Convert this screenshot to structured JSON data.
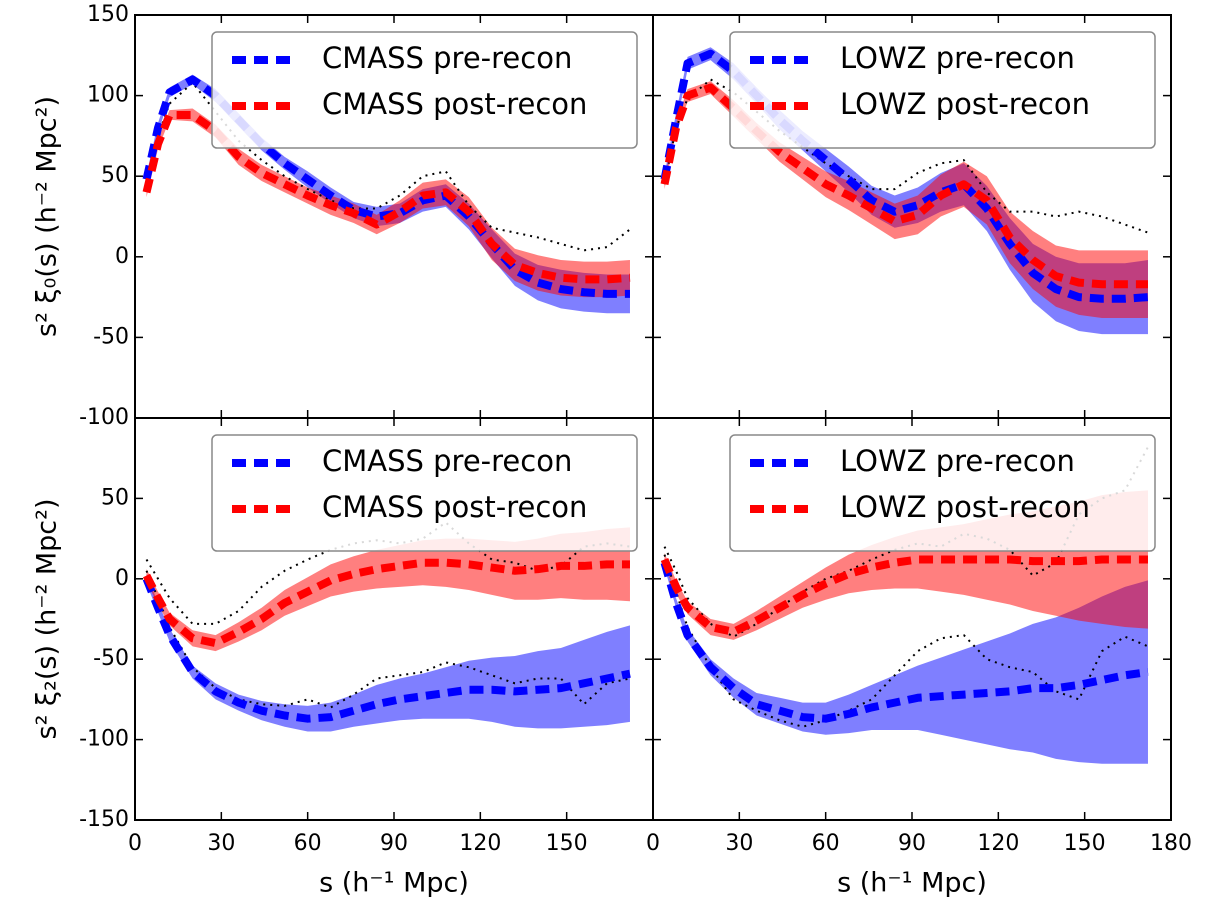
{
  "chart_data": [
    {
      "type": "line",
      "ylabel": "s² ξ₀(s) (h⁻² Mpc²)",
      "legend": "upper right",
      "x": [
        4,
        8,
        12,
        20,
        28,
        36,
        44,
        52,
        60,
        68,
        76,
        84,
        92,
        100,
        108,
        116,
        124,
        132,
        140,
        148,
        156,
        164,
        172
      ],
      "xlim": [
        0,
        180
      ],
      "ylim": [
        -100,
        150
      ],
      "yticks": [
        -100,
        -50,
        0,
        50,
        100,
        150
      ],
      "series": [
        {
          "name": "CMASS pre-recon",
          "color": "#0000ff",
          "style": "dashed",
          "values": [
            48,
            80,
            102,
            110,
            100,
            85,
            70,
            58,
            48,
            38,
            29,
            25,
            27,
            35,
            38,
            25,
            8,
            -8,
            -16,
            -20,
            -22,
            -23,
            -23
          ],
          "upper": [
            51,
            83,
            105,
            113,
            104,
            89,
            74,
            62,
            53,
            43,
            34,
            31,
            33,
            42,
            45,
            33,
            17,
            2,
            -5,
            -8,
            -10,
            -11,
            -11
          ],
          "lower": [
            45,
            77,
            99,
            107,
            96,
            81,
            66,
            54,
            43,
            33,
            24,
            19,
            21,
            28,
            31,
            17,
            -1,
            -18,
            -27,
            -32,
            -34,
            -35,
            -35
          ]
        },
        {
          "name": "CMASS post-recon",
          "color": "#ff0000",
          "style": "dashed",
          "values": [
            40,
            70,
            88,
            88,
            78,
            62,
            52,
            45,
            38,
            32,
            27,
            20,
            28,
            38,
            40,
            28,
            8,
            -5,
            -10,
            -13,
            -14,
            -14,
            -13
          ],
          "upper": [
            43,
            73,
            91,
            92,
            82,
            67,
            57,
            50,
            43,
            38,
            33,
            26,
            35,
            46,
            48,
            37,
            18,
            5,
            1,
            -2,
            -3,
            -3,
            -2
          ],
          "lower": [
            37,
            67,
            85,
            84,
            74,
            57,
            47,
            40,
            33,
            26,
            21,
            14,
            21,
            30,
            32,
            19,
            -2,
            -15,
            -21,
            -24,
            -25,
            -25,
            -24
          ]
        },
        {
          "color": "#000000",
          "style": "dotted",
          "values": [
            45,
            75,
            95,
            108,
            90,
            72,
            60,
            50,
            42,
            35,
            30,
            30,
            38,
            50,
            53,
            32,
            18,
            15,
            12,
            8,
            4,
            6,
            17
          ]
        }
      ]
    },
    {
      "type": "line",
      "legend": "upper right",
      "x": [
        4,
        8,
        12,
        20,
        28,
        36,
        44,
        52,
        60,
        68,
        76,
        84,
        92,
        100,
        108,
        116,
        124,
        132,
        140,
        148,
        156,
        164,
        172
      ],
      "xlim": [
        0,
        180
      ],
      "ylim": [
        -100,
        150
      ],
      "series": [
        {
          "name": "LOWZ pre-recon",
          "color": "#0000ff",
          "style": "dashed",
          "values": [
            48,
            85,
            120,
            126,
            115,
            100,
            85,
            72,
            60,
            48,
            35,
            28,
            32,
            40,
            45,
            30,
            8,
            -10,
            -20,
            -25,
            -26,
            -26,
            -25
          ],
          "upper": [
            51,
            89,
            124,
            130,
            120,
            105,
            91,
            78,
            67,
            56,
            44,
            38,
            43,
            52,
            58,
            44,
            24,
            8,
            0,
            -4,
            -4,
            -4,
            -2
          ],
          "lower": [
            45,
            81,
            116,
            122,
            110,
            95,
            79,
            66,
            53,
            40,
            26,
            18,
            21,
            28,
            32,
            16,
            -8,
            -28,
            -40,
            -46,
            -48,
            -48,
            -48
          ]
        },
        {
          "name": "LOWZ post-recon",
          "color": "#ff0000",
          "style": "dashed",
          "values": [
            45,
            80,
            100,
            105,
            92,
            78,
            65,
            55,
            45,
            38,
            30,
            22,
            26,
            38,
            45,
            35,
            12,
            -2,
            -12,
            -16,
            -17,
            -17,
            -17
          ],
          "upper": [
            48,
            83,
            104,
            109,
            97,
            83,
            71,
            62,
            53,
            47,
            40,
            33,
            38,
            51,
            59,
            50,
            28,
            16,
            7,
            4,
            4,
            4,
            4
          ],
          "lower": [
            42,
            77,
            96,
            101,
            87,
            73,
            59,
            48,
            37,
            29,
            20,
            11,
            14,
            25,
            31,
            20,
            -4,
            -20,
            -31,
            -36,
            -38,
            -38,
            -38
          ]
        },
        {
          "color": "#000000",
          "style": "dotted",
          "values": [
            45,
            80,
            98,
            110,
            102,
            90,
            78,
            68,
            58,
            50,
            42,
            42,
            52,
            58,
            60,
            40,
            28,
            28,
            25,
            28,
            25,
            20,
            15
          ]
        }
      ]
    },
    {
      "type": "line",
      "ylabel": "s² ξ₂(s) (h⁻² Mpc²)",
      "xlabel": "s (h⁻¹ Mpc)",
      "legend": "upper right",
      "x": [
        4,
        8,
        12,
        20,
        28,
        36,
        44,
        52,
        60,
        68,
        76,
        84,
        92,
        100,
        108,
        116,
        124,
        132,
        140,
        148,
        156,
        164,
        172
      ],
      "xlim": [
        0,
        180
      ],
      "ylim": [
        -150,
        100
      ],
      "xticks": [
        0,
        30,
        60,
        90,
        120,
        150
      ],
      "yticks": [
        -150,
        -100,
        -50,
        0,
        50
      ],
      "series": [
        {
          "name": "CMASS pre-recon",
          "color": "#0000ff",
          "style": "dashed",
          "values": [
            0,
            -18,
            -35,
            -58,
            -70,
            -77,
            -82,
            -85,
            -87,
            -86,
            -82,
            -78,
            -75,
            -73,
            -71,
            -69,
            -69,
            -70,
            -69,
            -68,
            -65,
            -62,
            -59
          ],
          "upper": [
            3,
            -15,
            -31,
            -54,
            -65,
            -72,
            -76,
            -78,
            -79,
            -77,
            -72,
            -66,
            -62,
            -59,
            -55,
            -51,
            -49,
            -48,
            -45,
            -43,
            -38,
            -33,
            -29
          ],
          "lower": [
            -3,
            -21,
            -39,
            -62,
            -75,
            -82,
            -88,
            -92,
            -95,
            -95,
            -92,
            -90,
            -88,
            -87,
            -87,
            -87,
            -89,
            -92,
            -93,
            -93,
            -92,
            -91,
            -89
          ]
        },
        {
          "name": "CMASS post-recon",
          "color": "#ff0000",
          "style": "dashed",
          "values": [
            2,
            -12,
            -25,
            -37,
            -40,
            -33,
            -25,
            -15,
            -8,
            -1,
            3,
            6,
            8,
            10,
            10,
            9,
            7,
            5,
            6,
            8,
            8,
            9,
            9
          ],
          "upper": [
            6,
            -8,
            -21,
            -32,
            -35,
            -27,
            -18,
            -7,
            1,
            9,
            14,
            18,
            21,
            24,
            25,
            25,
            24,
            23,
            25,
            28,
            29,
            31,
            32
          ],
          "lower": [
            -2,
            -16,
            -29,
            -42,
            -45,
            -39,
            -32,
            -23,
            -17,
            -11,
            -8,
            -6,
            -5,
            -4,
            -5,
            -7,
            -10,
            -13,
            -13,
            -12,
            -13,
            -13,
            -14
          ]
        },
        {
          "color": "#000000",
          "style": "dotted",
          "values": [
            12,
            0,
            -12,
            -28,
            -28,
            -20,
            -5,
            5,
            12,
            18,
            22,
            24,
            22,
            25,
            35,
            22,
            12,
            10,
            5,
            8,
            20,
            22,
            20
          ]
        },
        {
          "color": "#000000",
          "style": "dotted",
          "values": [
            5,
            -12,
            -30,
            -55,
            -68,
            -75,
            -78,
            -79,
            -75,
            -80,
            -72,
            -62,
            -60,
            -58,
            -52,
            -55,
            -60,
            -65,
            -62,
            -62,
            -78,
            -65,
            -62
          ]
        }
      ]
    },
    {
      "type": "line",
      "xlabel": "s (h⁻¹ Mpc)",
      "legend": "upper right",
      "x": [
        4,
        8,
        12,
        20,
        28,
        36,
        44,
        52,
        60,
        68,
        76,
        84,
        92,
        100,
        108,
        116,
        124,
        132,
        140,
        148,
        156,
        164,
        172
      ],
      "xlim": [
        0,
        180
      ],
      "ylim": [
        -150,
        100
      ],
      "xticks": [
        0,
        30,
        60,
        90,
        120,
        150,
        180
      ],
      "series": [
        {
          "name": "LOWZ pre-recon",
          "color": "#0000ff",
          "style": "dashed",
          "values": [
            10,
            -15,
            -35,
            -55,
            -68,
            -78,
            -82,
            -86,
            -87,
            -84,
            -80,
            -77,
            -74,
            -73,
            -72,
            -71,
            -70,
            -68,
            -68,
            -66,
            -63,
            -60,
            -58
          ],
          "upper": [
            13,
            -12,
            -31,
            -50,
            -62,
            -71,
            -74,
            -77,
            -77,
            -72,
            -66,
            -60,
            -54,
            -49,
            -44,
            -39,
            -34,
            -28,
            -24,
            -18,
            -11,
            -5,
            -1
          ],
          "lower": [
            7,
            -18,
            -39,
            -60,
            -74,
            -85,
            -90,
            -95,
            -97,
            -96,
            -94,
            -94,
            -94,
            -97,
            -100,
            -103,
            -106,
            -108,
            -112,
            -114,
            -115,
            -115,
            -115
          ]
        },
        {
          "name": "LOWZ post-recon",
          "color": "#ff0000",
          "style": "dashed",
          "values": [
            12,
            -5,
            -18,
            -30,
            -33,
            -26,
            -18,
            -10,
            -3,
            3,
            7,
            10,
            12,
            12,
            12,
            12,
            12,
            11,
            11,
            11,
            12,
            12,
            12
          ],
          "upper": [
            16,
            -1,
            -14,
            -25,
            -28,
            -20,
            -11,
            -2,
            7,
            15,
            21,
            26,
            30,
            32,
            34,
            37,
            40,
            42,
            45,
            48,
            52,
            54,
            55
          ],
          "lower": [
            8,
            -9,
            -22,
            -35,
            -38,
            -32,
            -25,
            -18,
            -13,
            -9,
            -7,
            -6,
            -6,
            -8,
            -10,
            -13,
            -16,
            -20,
            -23,
            -26,
            -28,
            -30,
            -31
          ]
        },
        {
          "color": "#000000",
          "style": "dotted",
          "values": [
            20,
            5,
            -12,
            -28,
            -36,
            -28,
            -18,
            -8,
            0,
            5,
            12,
            18,
            22,
            20,
            28,
            25,
            18,
            2,
            10,
            40,
            50,
            55,
            82
          ]
        },
        {
          "color": "#000000",
          "style": "dotted",
          "values": [
            15,
            -8,
            -30,
            -55,
            -75,
            -82,
            -88,
            -92,
            -88,
            -82,
            -75,
            -60,
            -45,
            -37,
            -35,
            -50,
            -55,
            -58,
            -70,
            -75,
            -45,
            -36,
            -42
          ]
        }
      ]
    }
  ]
}
